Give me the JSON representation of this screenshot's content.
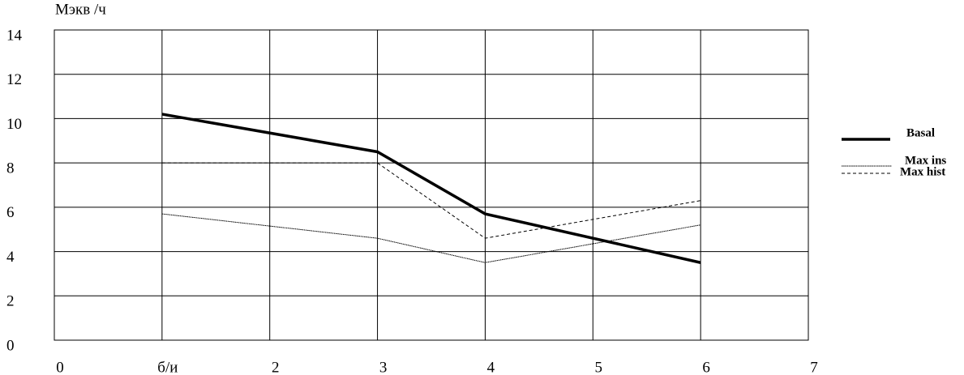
{
  "chart_data": {
    "type": "line",
    "y_label": "Мэкв /ч",
    "x": [
      1,
      3,
      4,
      6
    ],
    "series": [
      {
        "name": "Basal",
        "color": "#000000",
        "line_style": "bold",
        "values": [
          10.2,
          8.5,
          5.7,
          3.5
        ]
      },
      {
        "name": "Max ins",
        "color": "#000000",
        "line_style": "dotted",
        "values": [
          5.7,
          4.6,
          3.5,
          5.2
        ]
      },
      {
        "name": "Max hist",
        "color": "#000000",
        "line_style": "dashed",
        "values": [
          8,
          8,
          4.6,
          6.3
        ]
      }
    ],
    "xlim": [
      0,
      7
    ],
    "xticks": [
      0,
      {
        "value": 1,
        "label": "б/и"
      },
      2,
      3,
      4,
      5,
      6,
      7
    ],
    "ylim": [
      0,
      14
    ],
    "yticks": [
      0,
      2,
      4,
      6,
      8,
      10,
      12,
      14
    ],
    "grid": true,
    "legend": "right"
  }
}
